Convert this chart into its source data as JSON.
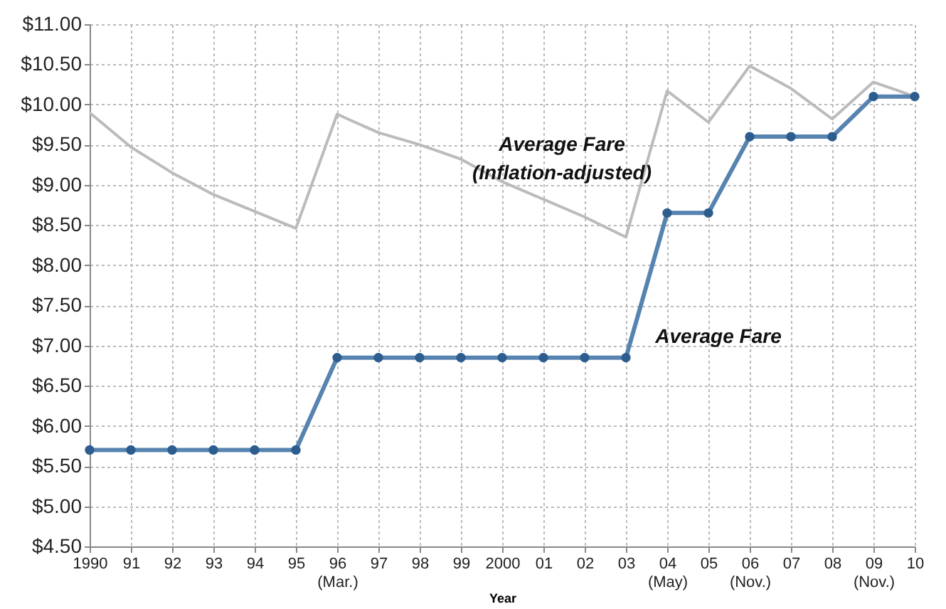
{
  "chart_data": {
    "type": "line",
    "xlabel": "Year",
    "categories": [
      "1990",
      "91",
      "92",
      "93",
      "94",
      "95",
      "96 (Mar.)",
      "97",
      "98",
      "99",
      "2000",
      "01",
      "02",
      "03",
      "04 (May)",
      "05",
      "06 (Nov.)",
      "07",
      "08",
      "09 (Nov.)",
      "10"
    ],
    "ylim": [
      4.5,
      11
    ],
    "yticks": [
      {
        "value": 4.5,
        "label": "$4.50"
      },
      {
        "value": 5,
        "label": "$5.00"
      },
      {
        "value": 5.5,
        "label": "$5.50"
      },
      {
        "value": 6,
        "label": "$6.00"
      },
      {
        "value": 6.5,
        "label": "$6.50"
      },
      {
        "value": 7,
        "label": "$7.00"
      },
      {
        "value": 7.5,
        "label": "$7.50"
      },
      {
        "value": 8,
        "label": "$8.00"
      },
      {
        "value": 8.5,
        "label": "$8.50"
      },
      {
        "value": 9,
        "label": "$9.00"
      },
      {
        "value": 9.5,
        "label": "$9.50"
      },
      {
        "value": 10,
        "label": "$10.00"
      },
      {
        "value": 10.5,
        "label": "$10.50"
      },
      {
        "value": 11,
        "label": "$11.00"
      }
    ],
    "grid": true,
    "series": [
      {
        "name": "Average Fare (Inflation-adjusted)",
        "color": "#bbbbbb",
        "marker": "none",
        "values": [
          9.9,
          9.47,
          9.15,
          8.88,
          8.67,
          8.46,
          9.88,
          9.65,
          9.5,
          9.32,
          9.04,
          8.82,
          8.6,
          8.35,
          10.17,
          9.78,
          10.48,
          10.2,
          9.82,
          10.28,
          10.1
        ]
      },
      {
        "name": "Average Fare",
        "color": "#5783b0",
        "marker": "circle",
        "values": [
          5.7,
          5.7,
          5.7,
          5.7,
          5.7,
          5.7,
          6.85,
          6.85,
          6.85,
          6.85,
          6.85,
          6.85,
          6.85,
          6.85,
          8.65,
          8.65,
          9.6,
          9.6,
          9.6,
          10.1,
          10.1
        ]
      }
    ]
  }
}
